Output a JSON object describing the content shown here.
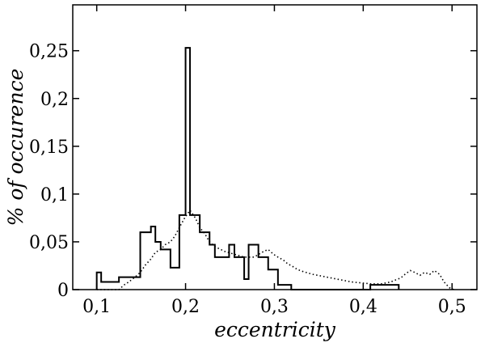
{
  "chart_data": {
    "type": "histogram",
    "xlabel": "eccentricity",
    "ylabel": "% of occurence",
    "xlim": [
      0.073,
      0.528
    ],
    "ylim": [
      0,
      0.298
    ],
    "grid": false,
    "x_ticks": [
      {
        "value": 0.1,
        "label": "0,1"
      },
      {
        "value": 0.2,
        "label": "0,2"
      },
      {
        "value": 0.3,
        "label": "0,3"
      },
      {
        "value": 0.4,
        "label": "0,4"
      },
      {
        "value": 0.5,
        "label": "0,5"
      }
    ],
    "y_ticks": [
      {
        "value": 0,
        "label": "0"
      },
      {
        "value": 0.05,
        "label": "0,05"
      },
      {
        "value": 0.1,
        "label": "0,1"
      },
      {
        "value": 0.15,
        "label": "0,15"
      },
      {
        "value": 0.2,
        "label": "0,2"
      },
      {
        "value": 0.25,
        "label": "0,25"
      }
    ],
    "series": [
      {
        "style": "solid",
        "x_edges": [
          0.1,
          0.105,
          0.11,
          0.12,
          0.125,
          0.131,
          0.136,
          0.149,
          0.155,
          0.161,
          0.166,
          0.172,
          0.177,
          0.183,
          0.193,
          0.2,
          0.205,
          0.211,
          0.216,
          0.222,
          0.227,
          0.233,
          0.238,
          0.244,
          0.249,
          0.255,
          0.26,
          0.266,
          0.271,
          0.277,
          0.282,
          0.288,
          0.293,
          0.299,
          0.304,
          0.319,
          0.408,
          0.44
        ],
        "values": [
          0.018,
          0.008,
          0.008,
          0.008,
          0.013,
          0.013,
          0.013,
          0.06,
          0.06,
          0.066,
          0.05,
          0.042,
          0.042,
          0.023,
          0.078,
          0.253,
          0.078,
          0.078,
          0.06,
          0.06,
          0.047,
          0.034,
          0.034,
          0.034,
          0.047,
          0.034,
          0.034,
          0.011,
          0.047,
          0.047,
          0.034,
          0.034,
          0.021,
          0.021,
          0.005,
          0,
          0.005
        ],
        "color": "#000000"
      },
      {
        "style": "dotted",
        "x": [
          0.1,
          0.125,
          0.131,
          0.136,
          0.143,
          0.149,
          0.155,
          0.161,
          0.166,
          0.172,
          0.177,
          0.183,
          0.188,
          0.193,
          0.199,
          0.205,
          0.211,
          0.216,
          0.222,
          0.227,
          0.233,
          0.244,
          0.255,
          0.266,
          0.277,
          0.288,
          0.293,
          0.299,
          0.304,
          0.31,
          0.315,
          0.321,
          0.326,
          0.332,
          0.343,
          0.354,
          0.365,
          0.376,
          0.387,
          0.398,
          0.409,
          0.42,
          0.431,
          0.436,
          0.442,
          0.447,
          0.453,
          0.458,
          0.464,
          0.469,
          0.475,
          0.48,
          0.486,
          0.491,
          0.497,
          0.502
        ],
        "y": [
          0,
          0,
          0.005,
          0.008,
          0.013,
          0.018,
          0.026,
          0.032,
          0.039,
          0.042,
          0.047,
          0.05,
          0.056,
          0.065,
          0.075,
          0.083,
          0.075,
          0.065,
          0.058,
          0.05,
          0.045,
          0.04,
          0.037,
          0.034,
          0.034,
          0.04,
          0.042,
          0.037,
          0.034,
          0.031,
          0.027,
          0.024,
          0.021,
          0.019,
          0.016,
          0.014,
          0.012,
          0.01,
          0.008,
          0.007,
          0.006,
          0.006,
          0.008,
          0.01,
          0.012,
          0.016,
          0.02,
          0.018,
          0.015,
          0.018,
          0.016,
          0.02,
          0.016,
          0.008,
          0.002,
          0
        ],
        "color": "#000000"
      }
    ]
  }
}
